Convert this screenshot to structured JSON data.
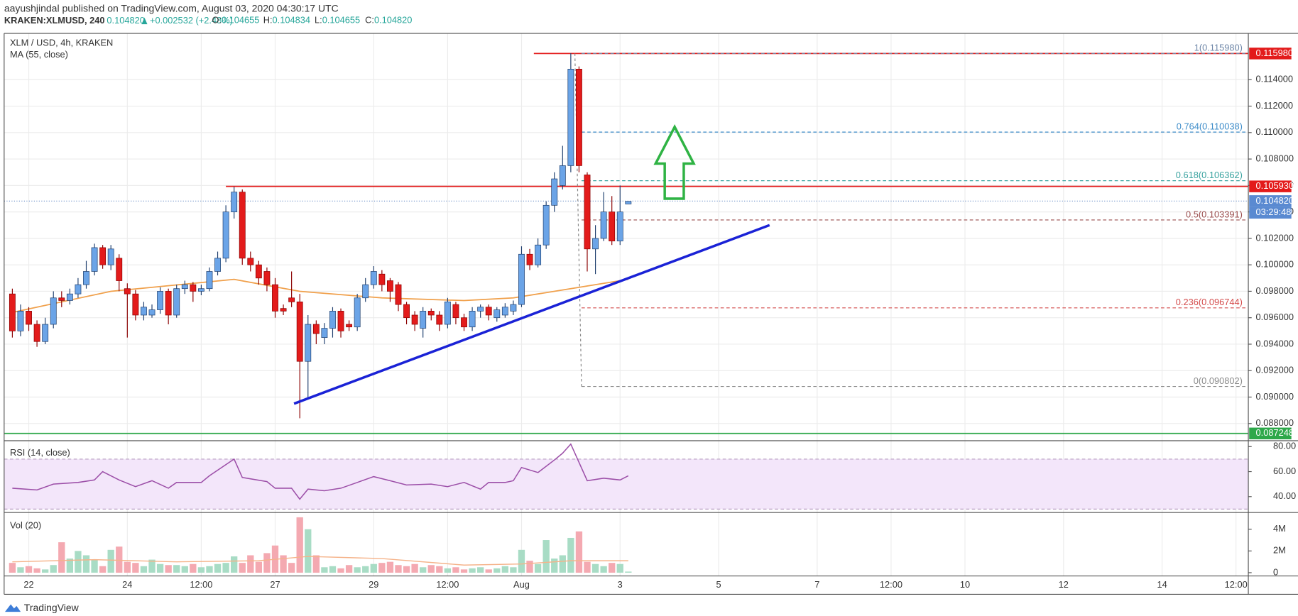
{
  "header": {
    "author": "aayushjindal published on TradingView.com, August 03, 2020 04:30:17 UTC",
    "symbol": "KRAKEN:XLMUSD, 240",
    "price": "0.104820",
    "change": "+0.002532 (+2.48%)",
    "ohlc": [
      {
        "label": "O:",
        "value": "0.104655"
      },
      {
        "label": "H:",
        "value": "0.104834"
      },
      {
        "label": "L:",
        "value": "0.104655"
      },
      {
        "label": "C:",
        "value": "0.104820"
      }
    ],
    "footer": "TradingView"
  },
  "chart_data": [
    {
      "type": "candlestick",
      "title": "XLM / USD, 4h, KRAKEN",
      "up_color": "#6ba4e7",
      "down_color": "#e31b1b",
      "xlim": [
        -1,
        150.5
      ],
      "ylim": [
        0.0867,
        0.1175
      ],
      "yticks": [
        {
          "value": 0.088,
          "label": "0.088000"
        },
        {
          "value": 0.09,
          "label": "0.090000"
        },
        {
          "value": 0.092,
          "label": "0.092000"
        },
        {
          "value": 0.094,
          "label": "0.094000"
        },
        {
          "value": 0.096,
          "label": "0.096000"
        },
        {
          "value": 0.098,
          "label": "0.098000"
        },
        {
          "value": 0.1,
          "label": "0.100000"
        },
        {
          "value": 0.102,
          "label": "0.102000"
        },
        {
          "value": 0.104,
          "label": "0.104000"
        },
        {
          "value": 0.106,
          "label": "0.106000"
        },
        {
          "value": 0.108,
          "label": "0.108000"
        },
        {
          "value": 0.11,
          "label": "0.110000"
        },
        {
          "value": 0.112,
          "label": "0.112000"
        },
        {
          "value": 0.114,
          "label": "0.114000"
        }
      ],
      "open": [
        0.0978,
        0.095,
        0.0965,
        0.0955,
        0.0942,
        0.0955,
        0.0975,
        0.0973,
        0.0978,
        0.0985,
        0.0995,
        0.1013,
        0.1,
        0.1005,
        0.0982,
        0.0978,
        0.0962,
        0.0962,
        0.0966,
        0.098,
        0.0962,
        0.0982,
        0.0985,
        0.098,
        0.0982,
        0.0995,
        0.1005,
        0.104,
        0.1055,
        0.1005,
        0.1,
        0.0995,
        0.0985,
        0.0967,
        0.0975,
        0.0972,
        0.0927,
        0.0955,
        0.0945,
        0.0952,
        0.0965,
        0.0955,
        0.0953,
        0.0975,
        0.0985,
        0.0993,
        0.0988,
        0.0985,
        0.097,
        0.0962,
        0.0952,
        0.0965,
        0.0962,
        0.0955,
        0.097,
        0.096,
        0.0953,
        0.0965,
        0.0968,
        0.096,
        0.0962,
        0.0965,
        0.097,
        0.1008,
        0.1,
        0.1015,
        0.1045,
        0.106,
        0.1075,
        0.1148,
        0.1068,
        0.1012,
        0.102,
        0.104,
        0.1018,
        0.1046
      ],
      "high": [
        0.0982,
        0.097,
        0.0968,
        0.0958,
        0.096,
        0.098,
        0.098,
        0.0982,
        0.099,
        0.1003,
        0.1016,
        0.1015,
        0.1015,
        0.1008,
        0.0986,
        0.0981,
        0.0972,
        0.097,
        0.0983,
        0.0982,
        0.0985,
        0.0988,
        0.0987,
        0.0985,
        0.0998,
        0.101,
        0.1045,
        0.1059,
        0.1057,
        0.101,
        0.1003,
        0.0998,
        0.099,
        0.097,
        0.0995,
        0.0978,
        0.0962,
        0.0958,
        0.0956,
        0.0968,
        0.0967,
        0.0958,
        0.0978,
        0.099,
        0.0999,
        0.0996,
        0.099,
        0.0987,
        0.0972,
        0.0965,
        0.0968,
        0.0967,
        0.0965,
        0.0975,
        0.0972,
        0.0963,
        0.0968,
        0.097,
        0.097,
        0.0968,
        0.0971,
        0.0973,
        0.1014,
        0.1012,
        0.102,
        0.1048,
        0.107,
        0.109,
        0.116,
        0.115,
        0.107,
        0.103,
        0.1055,
        0.1052,
        0.106,
        0.1048
      ],
      "low": [
        0.0945,
        0.0946,
        0.095,
        0.0938,
        0.094,
        0.0952,
        0.0968,
        0.097,
        0.0975,
        0.0982,
        0.0992,
        0.0997,
        0.0996,
        0.098,
        0.0945,
        0.0958,
        0.0958,
        0.096,
        0.0963,
        0.0955,
        0.096,
        0.0978,
        0.0972,
        0.0977,
        0.098,
        0.0992,
        0.1002,
        0.1035,
        0.1,
        0.0995,
        0.0985,
        0.098,
        0.096,
        0.0962,
        0.0968,
        0.0884,
        0.09,
        0.094,
        0.094,
        0.0945,
        0.0945,
        0.095,
        0.095,
        0.0972,
        0.0982,
        0.098,
        0.0972,
        0.0965,
        0.0955,
        0.095,
        0.0945,
        0.0958,
        0.095,
        0.0952,
        0.0955,
        0.095,
        0.095,
        0.096,
        0.0958,
        0.0957,
        0.096,
        0.0962,
        0.0968,
        0.0996,
        0.0998,
        0.1012,
        0.104,
        0.1057,
        0.107,
        0.107,
        0.0995,
        0.0993,
        0.1018,
        0.1015,
        0.1015,
        0.1046
      ],
      "close": [
        0.095,
        0.0965,
        0.0955,
        0.0942,
        0.0955,
        0.0975,
        0.0973,
        0.0978,
        0.0985,
        0.0995,
        0.1013,
        0.1,
        0.1012,
        0.0988,
        0.0978,
        0.0962,
        0.0968,
        0.0966,
        0.098,
        0.0962,
        0.0982,
        0.0985,
        0.098,
        0.0982,
        0.0995,
        0.1005,
        0.104,
        0.1055,
        0.1005,
        0.1,
        0.099,
        0.0985,
        0.0965,
        0.0965,
        0.0972,
        0.0927,
        0.0955,
        0.0948,
        0.0952,
        0.0965,
        0.095,
        0.0953,
        0.0975,
        0.0985,
        0.0995,
        0.0985,
        0.098,
        0.097,
        0.096,
        0.0955,
        0.0965,
        0.0962,
        0.0955,
        0.0972,
        0.096,
        0.0953,
        0.0965,
        0.0968,
        0.0962,
        0.0966,
        0.0968,
        0.097,
        0.1008,
        0.1,
        0.1015,
        0.1045,
        0.1065,
        0.1075,
        0.1148,
        0.1075,
        0.1012,
        0.102,
        0.104,
        0.1018,
        0.104,
        0.1048
      ],
      "ma": {
        "name": "MA (55, close)",
        "color": "#f0a04b",
        "x": [
          0,
          12,
          27,
          35,
          45,
          55,
          61,
          68,
          75
        ],
        "values": [
          0.0964,
          0.098,
          0.0989,
          0.098,
          0.0975,
          0.0973,
          0.0975,
          0.0982,
          0.0989
        ]
      },
      "hlines": [
        {
          "value": 0.11598,
          "from": 63.5,
          "color": "#e31b1b",
          "style": "solid"
        },
        {
          "value": 0.10593,
          "from": 26,
          "color": "#e31b1b",
          "style": "solid"
        },
        {
          "value": 0.087248,
          "from": -1,
          "color": "#2ea84a",
          "style": "solid"
        },
        {
          "value": 0.10482,
          "from": -1,
          "color": "#6b8fc7",
          "style": "dotted"
        }
      ],
      "price_tags": [
        {
          "value": 0.11598,
          "label": "0.115980",
          "color": "#e31b1b"
        },
        {
          "value": 0.10593,
          "label": "0.105930",
          "color": "#e31b1b"
        },
        {
          "value": 0.10482,
          "label": "0.104820",
          "color": "#5a8ad1"
        },
        {
          "value": 0.087248,
          "label": "0.087248",
          "color": "#2ea84a"
        }
      ],
      "countdown": "03:29:48",
      "fib": {
        "from": 68.5,
        "levels": [
          {
            "value": 0.11598,
            "label": "1(0.115980)",
            "color": "#6f87a8"
          },
          {
            "value": 0.110038,
            "label": "0.764(0.110038)",
            "color": "#3d8cc9"
          },
          {
            "value": 0.106362,
            "label": "0.618(0.106362)",
            "color": "#3aa3a0"
          },
          {
            "value": 0.103391,
            "label": "0.5(0.103391)",
            "color": "#9a4c4c"
          },
          {
            "value": 0.096744,
            "label": "0.236(0.096744)",
            "color": "#d44b4b"
          },
          {
            "value": 0.090802,
            "label": "0(0.090802)",
            "color": "#8a8a8a"
          }
        ]
      },
      "trendline": {
        "x": [
          34.3,
          92.2
        ],
        "values": [
          0.0895,
          0.103
        ],
        "color": "#1a22d6"
      }
    },
    {
      "type": "line",
      "title": "RSI (14, close)",
      "color": "#9c4fa8",
      "xlim": [
        -1,
        150.5
      ],
      "ylim": [
        27.3,
        84.7
      ],
      "yticks": [
        {
          "value": 80,
          "label": "80.00"
        },
        {
          "value": 60,
          "label": "60.00"
        },
        {
          "value": 40,
          "label": "40.00"
        }
      ],
      "levels": [
        30,
        70
      ],
      "x": [
        0,
        3,
        5,
        8,
        10,
        11,
        13,
        15,
        17,
        19,
        20,
        23,
        24,
        27,
        28,
        31,
        32,
        34,
        35,
        36,
        38,
        40,
        42,
        44,
        46,
        48,
        51,
        53,
        55,
        57,
        58,
        60,
        61,
        62,
        64,
        66,
        67,
        68,
        70,
        72,
        74,
        75
      ],
      "values": [
        46.7,
        45.3,
        50,
        51.3,
        53.3,
        60,
        53.3,
        48,
        52.7,
        46.7,
        51.3,
        51.3,
        56.7,
        70,
        55.3,
        52,
        46.7,
        46.7,
        38,
        46,
        44.7,
        46.7,
        51.3,
        56,
        52.7,
        49.3,
        50,
        48,
        51.3,
        46,
        51.3,
        51.3,
        52.7,
        63.3,
        59.3,
        69.3,
        74.7,
        82,
        52.7,
        54.7,
        53.3,
        56.7
      ]
    },
    {
      "type": "bar",
      "title": "Vol (20)",
      "up_color": "#a8dcc5",
      "down_color": "#f4a9b1",
      "xlim": [
        -1,
        150.5
      ],
      "ylim": [
        -300000,
        5540000
      ],
      "yticks": [
        {
          "value": 0,
          "label": "0"
        },
        {
          "value": 2000000,
          "label": "2M"
        },
        {
          "value": 4000000,
          "label": "4M"
        }
      ],
      "xticks": [
        {
          "value": 2,
          "label": "22"
        },
        {
          "value": 14,
          "label": "24"
        },
        {
          "value": 23,
          "label": "12:00"
        },
        {
          "value": 32,
          "label": "27"
        },
        {
          "value": 44,
          "label": "29"
        },
        {
          "value": 53,
          "label": "12:00"
        },
        {
          "value": 62,
          "label": "Aug"
        },
        {
          "value": 74,
          "label": "3"
        },
        {
          "value": 86,
          "label": "5"
        },
        {
          "value": 98,
          "label": "7"
        },
        {
          "value": 107,
          "label": "12:00"
        },
        {
          "value": 116,
          "label": "10"
        },
        {
          "value": 128,
          "label": "12"
        },
        {
          "value": 140,
          "label": "14"
        },
        {
          "value": 149,
          "label": "12:00"
        }
      ],
      "values": [
        900000,
        500000,
        600000,
        400000,
        300000,
        700000,
        2800000,
        1300000,
        2000000,
        1600000,
        1200000,
        600000,
        2100000,
        2400000,
        1000000,
        900000,
        600000,
        1200000,
        800000,
        700000,
        700000,
        600000,
        800000,
        500000,
        600000,
        800000,
        900000,
        1500000,
        900000,
        1600000,
        1000000,
        1800000,
        2500000,
        1600000,
        900000,
        5100000,
        4000000,
        1600000,
        500000,
        600000,
        400000,
        700000,
        500000,
        600000,
        800000,
        900000,
        1000000,
        700000,
        600000,
        800000,
        500000,
        700000,
        600000,
        400000,
        500000,
        300000,
        400000,
        500000,
        300000,
        400000,
        600000,
        500000,
        2100000,
        1100000,
        800000,
        3000000,
        1300000,
        1600000,
        3200000,
        3800000,
        1000000,
        800000,
        600000,
        900000,
        800000,
        100000
      ],
      "ma": {
        "color": "#f5b38a",
        "x": [
          0,
          10,
          20,
          30,
          36,
          45,
          55,
          62,
          68,
          75
        ],
        "values": [
          1000000,
          1200000,
          1000000,
          1100000,
          1500000,
          1300000,
          700000,
          800000,
          1100000,
          1100000
        ]
      }
    }
  ]
}
